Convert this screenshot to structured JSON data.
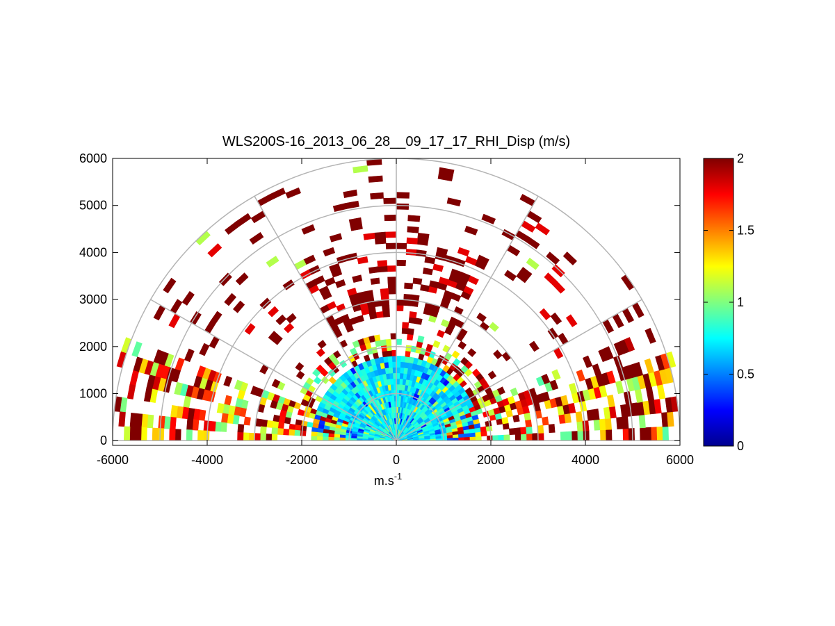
{
  "chart_data": {
    "type": "heatmap",
    "subtype": "polar-rhi-sector",
    "title": "WLS200S-16_2013_06_28__09_17_17_RHI_Disp (m/s)",
    "xlabel": "m.s",
    "xlabel_superscript": "-1",
    "ylabel": "",
    "xlim": [
      -6000,
      6000
    ],
    "ylim": [
      -100,
      6000
    ],
    "xticks": [
      "-6000",
      "-4000",
      "-2000",
      "0",
      "2000",
      "4000",
      "6000"
    ],
    "yticks": [
      "0",
      "1000",
      "2000",
      "3000",
      "4000",
      "5000",
      "6000"
    ],
    "polar_grid": {
      "ranges_m": [
        1000,
        2000,
        3000,
        4000,
        5000,
        6000
      ],
      "spoke_angles_deg": [
        0,
        30,
        60,
        90,
        120,
        150,
        180
      ]
    },
    "colorbar": {
      "colormap": "jet",
      "range": [
        0,
        2
      ],
      "ticks": [
        "0",
        "0.5",
        "1",
        "1.5",
        "2"
      ]
    },
    "scan": {
      "elevation_step_deg": 3,
      "range_gate_m": 120,
      "dense_region": "values 0.4–1.0 within ~1800 m range at elevations 0–180 deg; values saturating to 2 beyond ~2000 m",
      "sparse_region": "scattered gates with values mostly ≥ 2 between 2000 m and 6000 m range"
    },
    "colors": {
      "grid": "#b4b4b4",
      "axis": "#000000",
      "background": "#ffffff"
    }
  }
}
